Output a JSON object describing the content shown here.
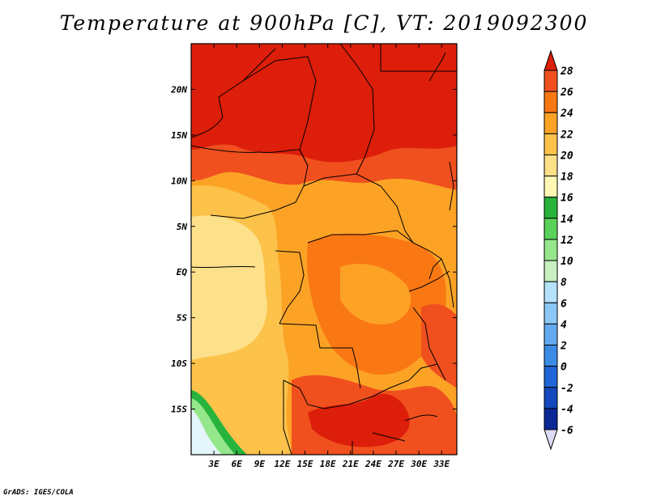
{
  "title": "Temperature at 900hPa [C], VT: 2019092300",
  "credit": "GrADS: IGES/COLA",
  "map": {
    "lon_range": [
      0,
      35
    ],
    "lat_range": [
      -20,
      25
    ],
    "x_ticks": [
      "3E",
      "6E",
      "9E",
      "12E",
      "15E",
      "18E",
      "21E",
      "24E",
      "27E",
      "30E",
      "33E"
    ],
    "y_ticks": [
      "20N",
      "15N",
      "10N",
      "5N",
      "EQ",
      "5S",
      "10S",
      "15S"
    ]
  },
  "colorbar": {
    "labels": [
      "28",
      "26",
      "24",
      "22",
      "20",
      "18",
      "16",
      "14",
      "12",
      "10",
      "8",
      "6",
      "4",
      "2",
      "0",
      "-2",
      "-4",
      "-6"
    ],
    "colors": [
      "#dc1e0a",
      "#f0501e",
      "#fa7814",
      "#fca326",
      "#fcc24a",
      "#fde08a",
      "#fff8b4",
      "#28b43c",
      "#5ad25a",
      "#96e68c",
      "#c8f0c0",
      "#b4e2fa",
      "#8cc8f5",
      "#64aaf0",
      "#3c8ce6",
      "#2066d8",
      "#1448bc",
      "#0a2896",
      "#0a1460"
    ],
    "top_arrow_color": "#dc1e0a",
    "bottom_arrow_color": "#dcdcf8"
  }
}
